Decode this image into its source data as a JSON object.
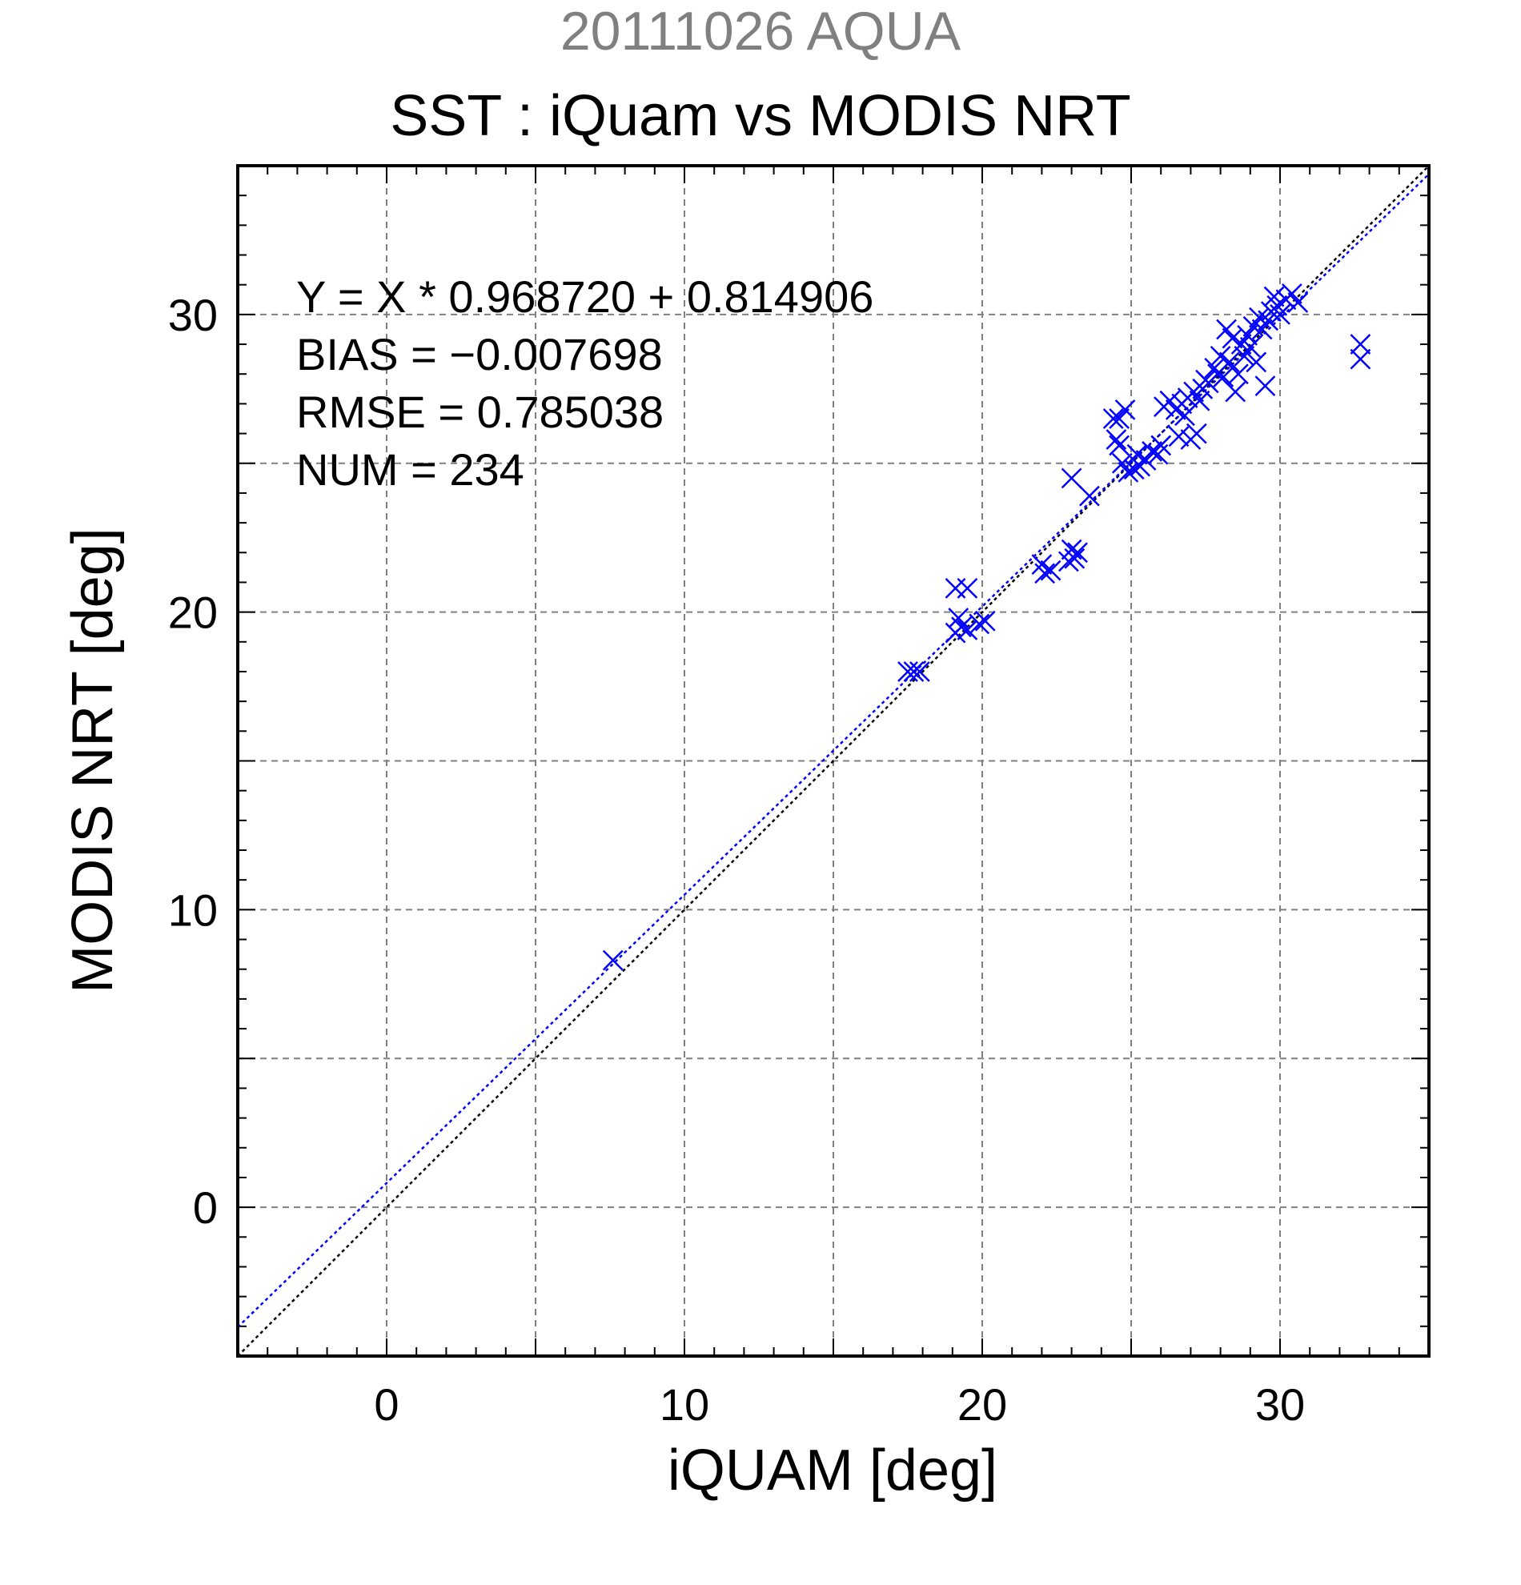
{
  "chart_data": {
    "type": "scatter",
    "title_top": "20111026 AQUA",
    "title": "SST : iQuam vs MODIS NRT",
    "xlabel": "iQUAM [deg]",
    "ylabel": "MODIS NRT [deg]",
    "xlim": [
      -5,
      35
    ],
    "ylim": [
      -5,
      35
    ],
    "xticks": [
      "0",
      "10",
      "20",
      "30"
    ],
    "yticks": [
      "0",
      "10",
      "20",
      "30"
    ],
    "grid": true,
    "marker": "x",
    "series_color": "#0000ff",
    "stats": {
      "fit": "Y = X * 0.968720 + 0.814906",
      "bias": "BIAS = −0.007698",
      "rmse": "RMSE = 0.785038",
      "num": "NUM = 234"
    },
    "fit_line": {
      "slope": 0.96872,
      "intercept": 0.814906,
      "color": "#0000ff"
    },
    "identity_line": {
      "slope": 1,
      "intercept": 0,
      "color": "#000000"
    },
    "points": [
      [
        7.6,
        8.3
      ],
      [
        17.5,
        18.0
      ],
      [
        17.7,
        18.0
      ],
      [
        17.9,
        18.0
      ],
      [
        19.1,
        20.8
      ],
      [
        19.5,
        20.8
      ],
      [
        19.1,
        19.3
      ],
      [
        19.3,
        19.5
      ],
      [
        19.2,
        19.8
      ],
      [
        19.5,
        19.4
      ],
      [
        19.9,
        19.6
      ],
      [
        20.1,
        19.7
      ],
      [
        22.0,
        21.6
      ],
      [
        22.1,
        21.3
      ],
      [
        22.3,
        21.4
      ],
      [
        22.9,
        21.7
      ],
      [
        23.1,
        21.8
      ],
      [
        23.0,
        22.1
      ],
      [
        23.2,
        22.0
      ],
      [
        23.0,
        24.5
      ],
      [
        23.6,
        23.9
      ],
      [
        24.4,
        26.5
      ],
      [
        24.8,
        26.8
      ],
      [
        24.6,
        25.6
      ],
      [
        24.7,
        25.0
      ],
      [
        24.5,
        25.8
      ],
      [
        24.9,
        24.7
      ],
      [
        25.1,
        24.8
      ],
      [
        25.2,
        25.3
      ],
      [
        25.5,
        25.1
      ],
      [
        25.7,
        25.4
      ],
      [
        25.9,
        25.3
      ],
      [
        26.0,
        25.6
      ],
      [
        26.1,
        26.9
      ],
      [
        26.3,
        27.1
      ],
      [
        26.5,
        26.8
      ],
      [
        26.6,
        25.9
      ],
      [
        26.7,
        27.0
      ],
      [
        26.9,
        27.2
      ],
      [
        27.0,
        25.8
      ],
      [
        27.1,
        27.4
      ],
      [
        27.2,
        26.0
      ],
      [
        27.3,
        27.1
      ],
      [
        27.4,
        27.5
      ],
      [
        27.6,
        27.7
      ],
      [
        27.8,
        28.2
      ],
      [
        28.1,
        27.9
      ],
      [
        28.3,
        28.4
      ],
      [
        28.4,
        29.2
      ],
      [
        28.5,
        27.4
      ],
      [
        28.6,
        28.0
      ],
      [
        28.7,
        29.0
      ],
      [
        28.8,
        28.6
      ],
      [
        28.9,
        29.3
      ],
      [
        29.0,
        28.9
      ],
      [
        29.1,
        29.6
      ],
      [
        29.3,
        29.9
      ],
      [
        29.4,
        29.5
      ],
      [
        29.5,
        27.6
      ],
      [
        29.6,
        29.8
      ],
      [
        29.7,
        30.1
      ],
      [
        29.8,
        30.6
      ],
      [
        29.9,
        30.3
      ],
      [
        30.0,
        30.0
      ],
      [
        30.2,
        30.5
      ],
      [
        30.4,
        30.7
      ],
      [
        30.6,
        30.4
      ],
      [
        32.7,
        29.0
      ],
      [
        32.7,
        28.5
      ],
      [
        28.2,
        29.5
      ],
      [
        27.9,
        28.0
      ],
      [
        28.0,
        28.6
      ],
      [
        26.8,
        26.6
      ],
      [
        25.3,
        24.9
      ],
      [
        24.6,
        26.5
      ],
      [
        27.5,
        27.8
      ],
      [
        29.2,
        28.4
      ]
    ]
  }
}
